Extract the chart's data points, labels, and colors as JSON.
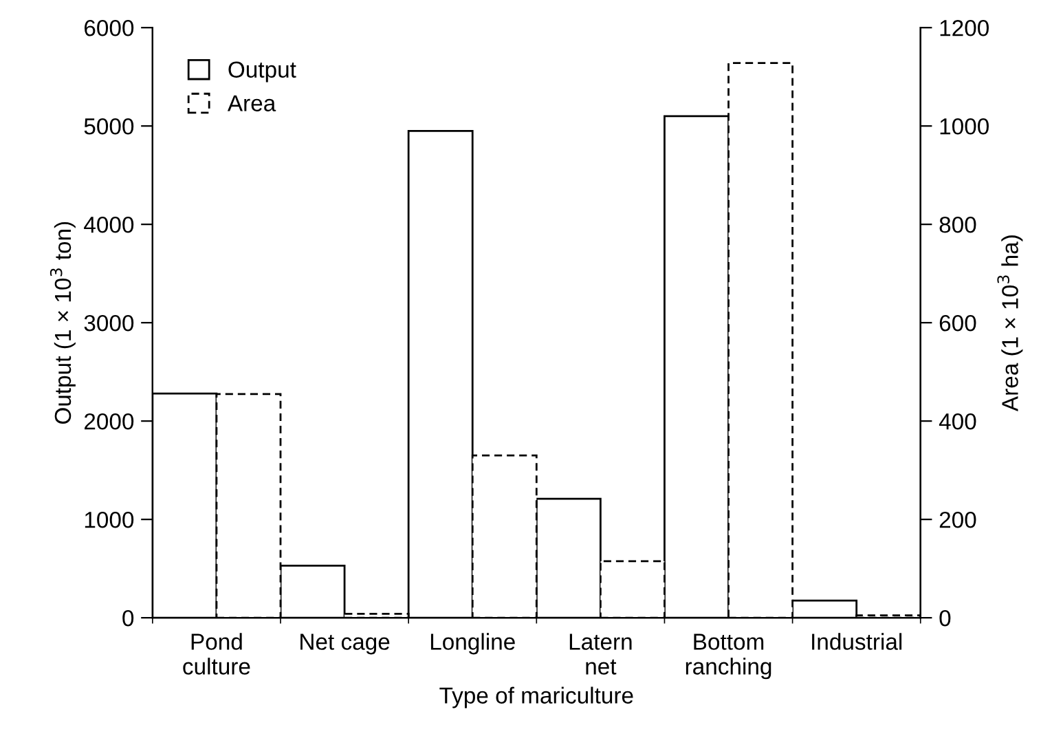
{
  "chart_data": {
    "type": "bar",
    "xlabel": "Type of mariculture",
    "ylabel": "Output (1 × 10$^{3}$ ton)",
    "y2label": "Area (1 × 10$^{3}$ ha)",
    "categories": [
      "Pond\nculture",
      "Net cage",
      "Longline",
      "Latern\nnet",
      "Bottom\nranching",
      "Industrial"
    ],
    "series": [
      {
        "name": "Output",
        "color": "#ffffff",
        "line_style": "solid",
        "values": [
          2280,
          530,
          4950,
          1210,
          5100,
          175
        ]
      },
      {
        "name": "Area",
        "color": "#ffffff",
        "line_style": "dashed",
        "axis": "y2",
        "values": [
          455,
          8,
          330,
          115,
          1128,
          5
        ]
      }
    ],
    "ylim": [
      0,
      6000
    ],
    "yticks": [
      0,
      1000,
      2000,
      3000,
      4000,
      5000,
      6000
    ],
    "y2lim": [
      0,
      1200
    ],
    "y2ticks": [
      0,
      200,
      400,
      600,
      800,
      1000,
      1200
    ],
    "legend": "top left",
    "grid": false
  }
}
